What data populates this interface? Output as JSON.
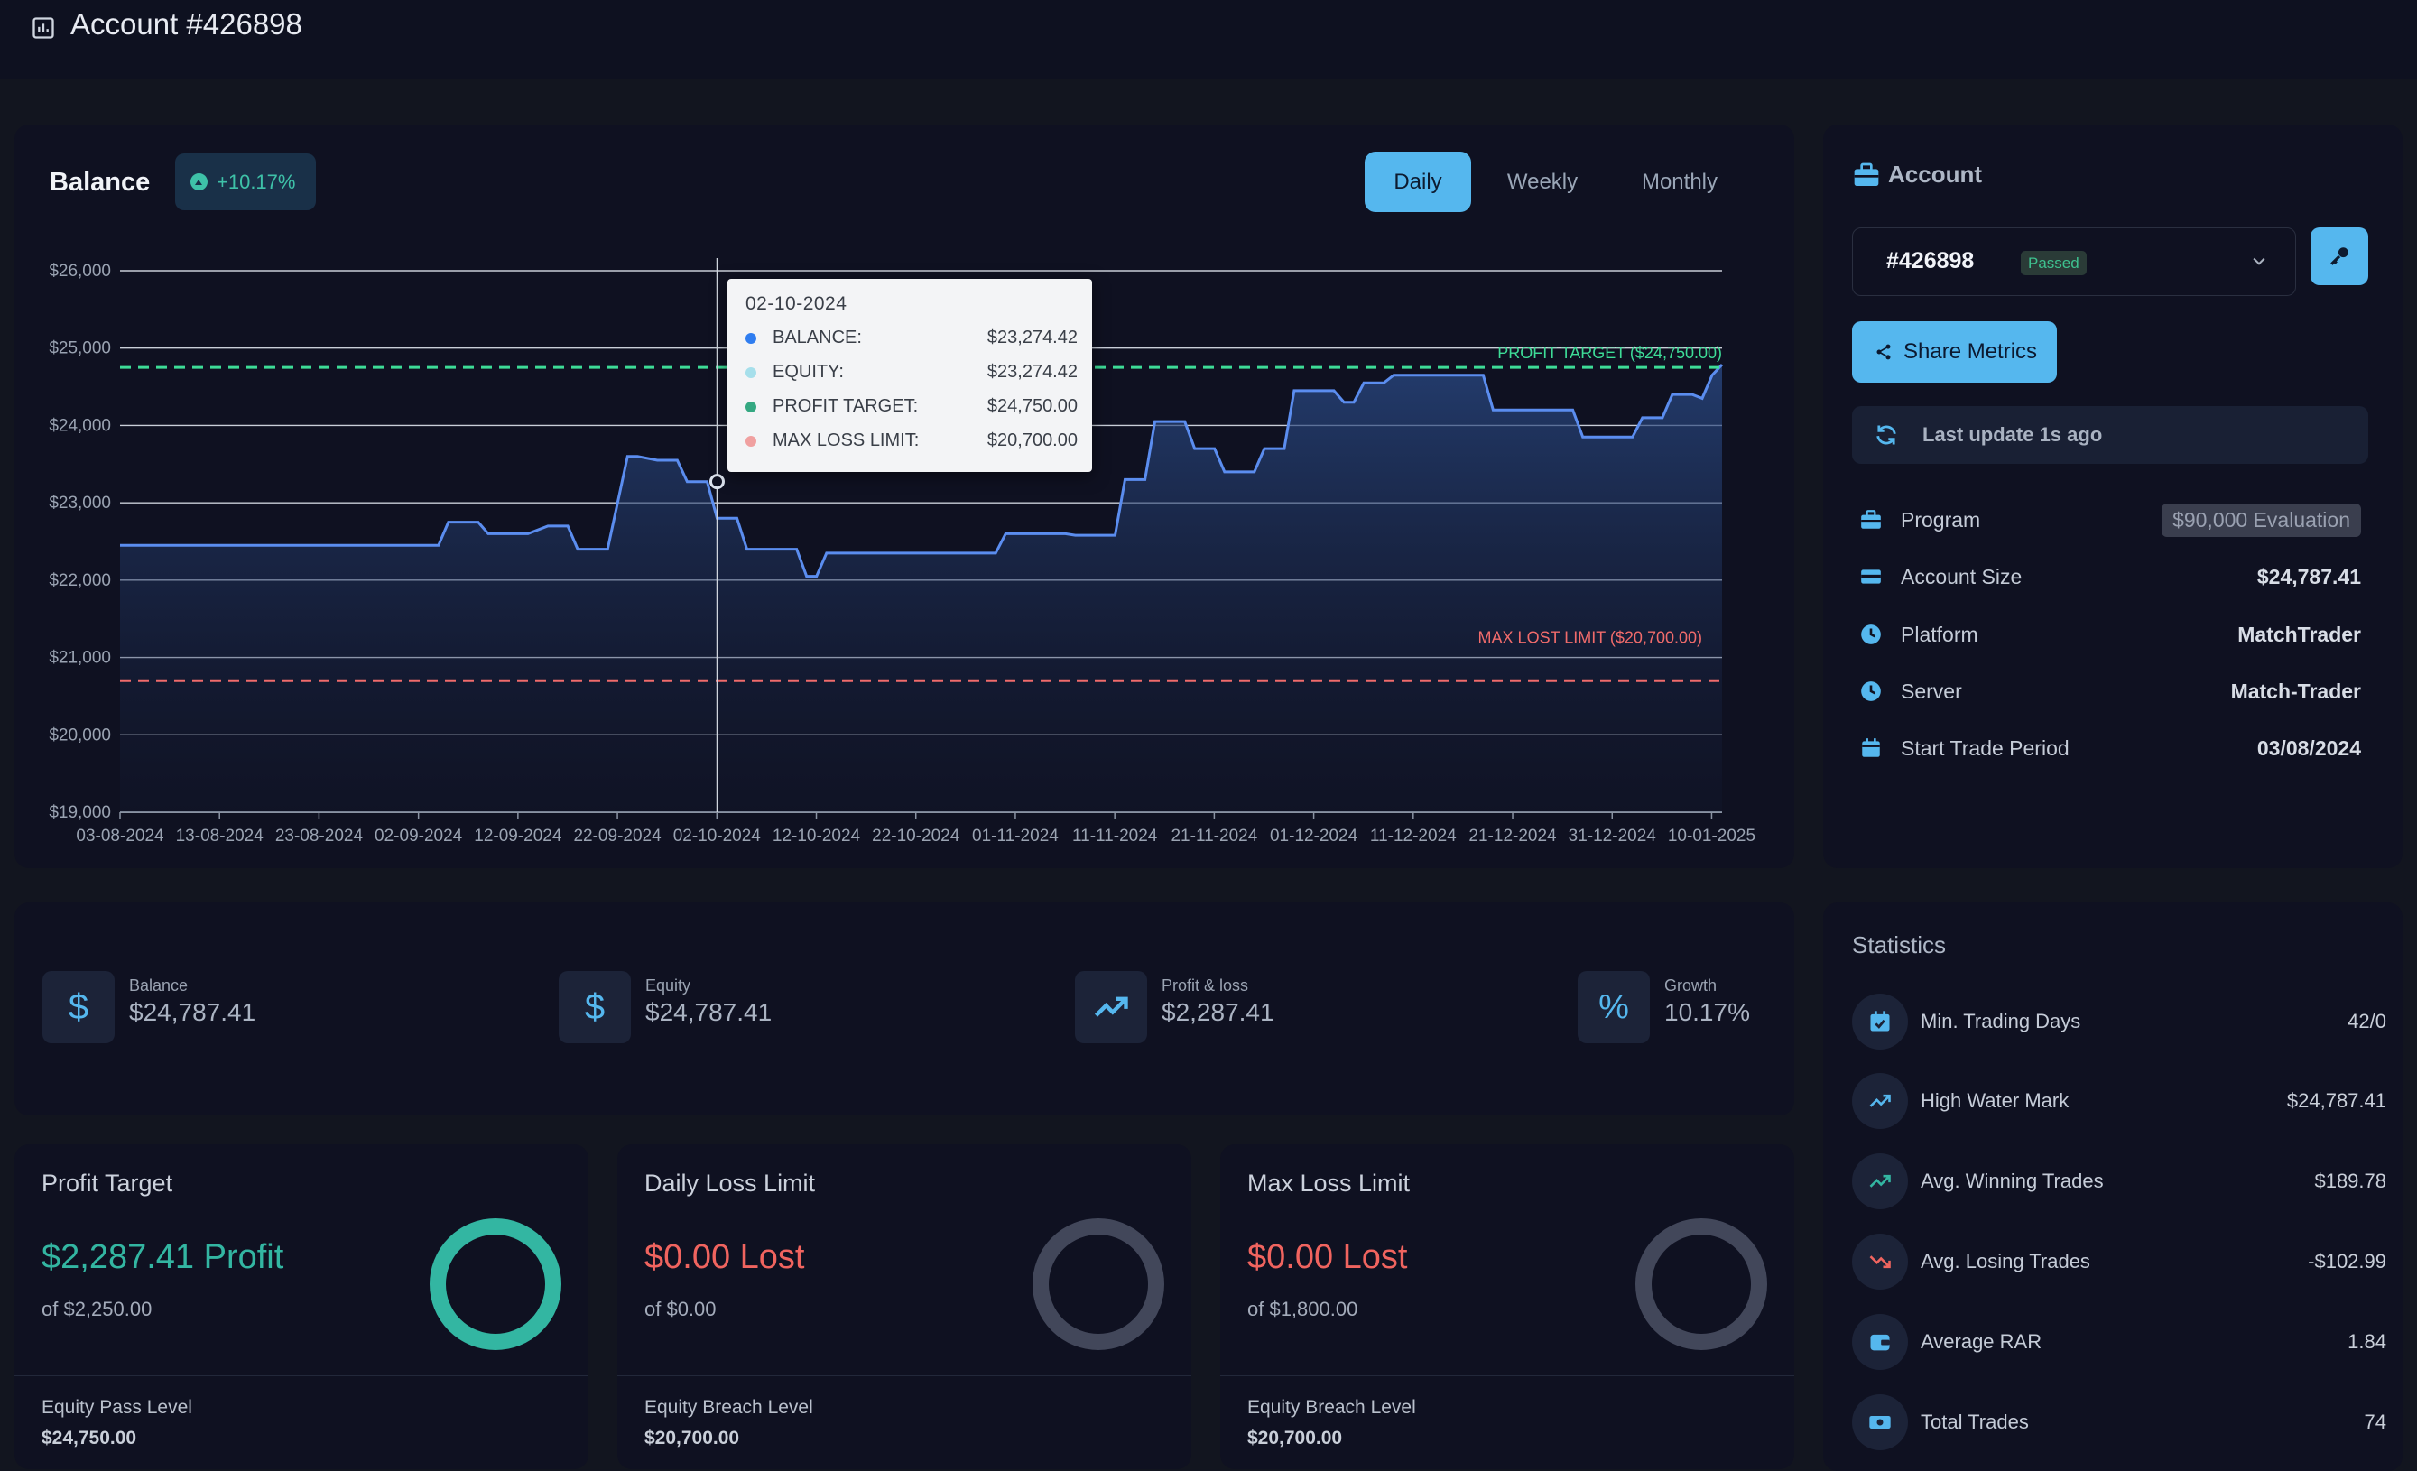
{
  "header": {
    "title": "Account #426898",
    "icon": "bar-chart-icon"
  },
  "balance_card": {
    "title": "Balance",
    "growth_badge": "+10.17%",
    "periods": [
      "Daily",
      "Weekly",
      "Monthly"
    ],
    "active_period": "Daily"
  },
  "tooltip": {
    "date": "02-10-2024",
    "rows": [
      {
        "label": "BALANCE:",
        "value": "$23,274.42",
        "color": "#2f7df0"
      },
      {
        "label": "EQUITY:",
        "value": "$23,274.42",
        "color": "#a6dfeb"
      },
      {
        "label": "PROFIT TARGET:",
        "value": "$24,750.00",
        "color": "#34a882"
      },
      {
        "label": "MAX LOSS LIMIT:",
        "value": "$20,700.00",
        "color": "#f0a0a0"
      }
    ]
  },
  "chart_data": {
    "type": "area",
    "title": "Balance",
    "ylim": [
      19000,
      26000
    ],
    "y_ticks": [
      "$26,000",
      "$25,000",
      "$24,000",
      "$23,000",
      "$22,000",
      "$21,000",
      "$20,000",
      "$19,000"
    ],
    "y_tick_values": [
      26000,
      25000,
      24000,
      23000,
      22000,
      21000,
      20000,
      19000
    ],
    "x_ticks": [
      "03-08-2024",
      "13-08-2024",
      "23-08-2024",
      "02-09-2024",
      "12-09-2024",
      "22-09-2024",
      "02-10-2024",
      "12-10-2024",
      "22-10-2024",
      "01-11-2024",
      "11-11-2024",
      "21-11-2024",
      "01-12-2024",
      "11-12-2024",
      "21-12-2024",
      "31-12-2024",
      "10-01-2025"
    ],
    "x_range_days": [
      0,
      161
    ],
    "grid": true,
    "series": [
      {
        "name": "Balance",
        "color": "#5b8def",
        "points": [
          [
            0,
            22450
          ],
          [
            32,
            22450
          ],
          [
            33,
            22750
          ],
          [
            36,
            22750
          ],
          [
            37,
            22600
          ],
          [
            41,
            22600
          ],
          [
            43,
            22700
          ],
          [
            45,
            22700
          ],
          [
            46,
            22400
          ],
          [
            49,
            22400
          ],
          [
            51,
            23600
          ],
          [
            52,
            23600
          ],
          [
            54,
            23550
          ],
          [
            56,
            23550
          ],
          [
            57,
            23274
          ],
          [
            59,
            23274
          ],
          [
            60,
            22800
          ],
          [
            62,
            22800
          ],
          [
            63,
            22400
          ],
          [
            68,
            22400
          ],
          [
            69,
            22050
          ],
          [
            70,
            22050
          ],
          [
            71,
            22350
          ],
          [
            88,
            22350
          ],
          [
            89,
            22600
          ],
          [
            95,
            22600
          ],
          [
            96,
            22580
          ],
          [
            100,
            22580
          ],
          [
            101,
            23300
          ],
          [
            103,
            23300
          ],
          [
            104,
            24050
          ],
          [
            107,
            24050
          ],
          [
            108,
            23700
          ],
          [
            110,
            23700
          ],
          [
            111,
            23400
          ],
          [
            114,
            23400
          ],
          [
            115,
            23700
          ],
          [
            117,
            23700
          ],
          [
            118,
            24450
          ],
          [
            122,
            24450
          ],
          [
            123,
            24300
          ],
          [
            124,
            24300
          ],
          [
            125,
            24550
          ],
          [
            127,
            24550
          ],
          [
            128,
            24650
          ],
          [
            137,
            24650
          ],
          [
            138,
            24200
          ],
          [
            146,
            24200
          ],
          [
            147,
            23850
          ],
          [
            152,
            23850
          ],
          [
            153,
            24100
          ],
          [
            155,
            24100
          ],
          [
            156,
            24400
          ],
          [
            158,
            24400
          ],
          [
            159,
            24350
          ],
          [
            160,
            24650
          ],
          [
            161,
            24787
          ]
        ]
      }
    ],
    "reference_lines": [
      {
        "label": "PROFIT TARGET ($24,750.00)",
        "value": 24750,
        "color": "#3ddc97"
      },
      {
        "label": "MAX LOST LIMIT ($20,700.00)",
        "value": 20700,
        "color": "#f06b6b"
      }
    ],
    "crosshair_day": 60,
    "highlight_point": [
      60,
      23274
    ]
  },
  "account_panel": {
    "title": "Account",
    "account_number": "#426898",
    "status": "Passed",
    "share_label": "Share Metrics",
    "last_update": "Last update 1s ago",
    "rows": [
      {
        "label": "Program",
        "value": "$90,000 Evaluation",
        "icon": "briefcase-icon"
      },
      {
        "label": "Account Size",
        "value": "$24,787.41",
        "icon": "card-icon"
      },
      {
        "label": "Platform",
        "value": "MatchTrader",
        "icon": "clock-icon"
      },
      {
        "label": "Server",
        "value": "Match-Trader",
        "icon": "clock-icon"
      },
      {
        "label": "Start Trade Period",
        "value": "03/08/2024",
        "icon": "calendar-icon"
      }
    ]
  },
  "metrics": [
    {
      "label": "Balance",
      "value": "$24,787.41",
      "icon": "dollar-icon"
    },
    {
      "label": "Equity",
      "value": "$24,787.41",
      "icon": "dollar-icon"
    },
    {
      "label": "Profit & loss",
      "value": "$2,287.41",
      "icon": "trend-up-icon"
    },
    {
      "label": "Growth",
      "value": "10.17%",
      "icon": "percent-icon"
    }
  ],
  "limits": [
    {
      "title": "Profit Target",
      "value": "$2,287.41 Profit",
      "of": "of $2,250.00",
      "eq_label": "Equity Pass Level",
      "eq_value": "$24,750.00",
      "color": "#33b6a2",
      "progress": 1.0
    },
    {
      "title": "Daily Loss Limit",
      "value": "$0.00 Lost",
      "of": "of $0.00",
      "eq_label": "Equity Breach Level",
      "eq_value": "$20,700.00",
      "color": "#f0645f",
      "progress": 0
    },
    {
      "title": "Max Loss Limit",
      "value": "$0.00 Lost",
      "of": "of $1,800.00",
      "eq_label": "Equity Breach Level",
      "eq_value": "$20,700.00",
      "color": "#f0645f",
      "progress": 0
    }
  ],
  "statistics": {
    "title": "Statistics",
    "rows": [
      {
        "label": "Min. Trading Days",
        "value": "42/0",
        "icon": "calendar-check-icon"
      },
      {
        "label": "High Water Mark",
        "value": "$24,787.41",
        "icon": "trend-up-icon"
      },
      {
        "label": "Avg. Winning Trades",
        "value": "$189.78",
        "icon": "trend-up-icon"
      },
      {
        "label": "Avg. Losing Trades",
        "value": "-$102.99",
        "icon": "trend-down-icon"
      },
      {
        "label": "Average RAR",
        "value": "1.84",
        "icon": "wallet-icon"
      },
      {
        "label": "Total Trades",
        "value": "74",
        "icon": "cash-icon"
      }
    ]
  }
}
